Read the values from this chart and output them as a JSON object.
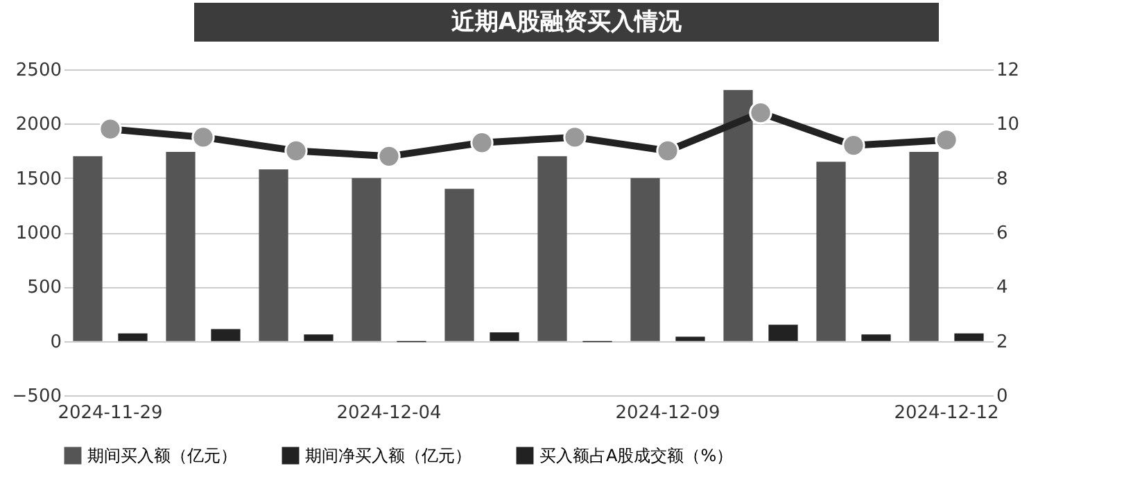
{
  "chart_data": {
    "type": "bar",
    "title": "近期A股融资买入情况",
    "categories": [
      "2024-11-29",
      null,
      null,
      "2024-12-04",
      null,
      null,
      "2024-12-09",
      null,
      null,
      "2024-12-12"
    ],
    "series": [
      {
        "name": "期间买入额（亿元）",
        "color": "#555555",
        "values": [
          1700,
          1740,
          1580,
          1500,
          1400,
          1700,
          1500,
          2310,
          1650,
          1740
        ]
      },
      {
        "name": "期间净买入额（亿元）",
        "color": "#222222",
        "values": [
          70,
          110,
          60,
          -10,
          80,
          -10,
          40,
          150,
          60,
          70
        ]
      },
      {
        "name": "买入额占A股成交额（%）",
        "type": "line",
        "axis": "y2",
        "color": "#222222",
        "marker": "circle",
        "values": [
          9.8,
          9.5,
          9.0,
          8.8,
          9.3,
          9.5,
          9.0,
          10.4,
          9.2,
          9.4
        ]
      }
    ],
    "ylim": [
      -500,
      2500
    ],
    "yticks": [
      -500,
      0,
      500,
      1000,
      1500,
      2000,
      2500
    ],
    "y2lim": [
      0,
      12
    ],
    "y2ticks": [
      0,
      2,
      4,
      6,
      8,
      10,
      12
    ],
    "grid": "y",
    "legend": "bottom"
  }
}
